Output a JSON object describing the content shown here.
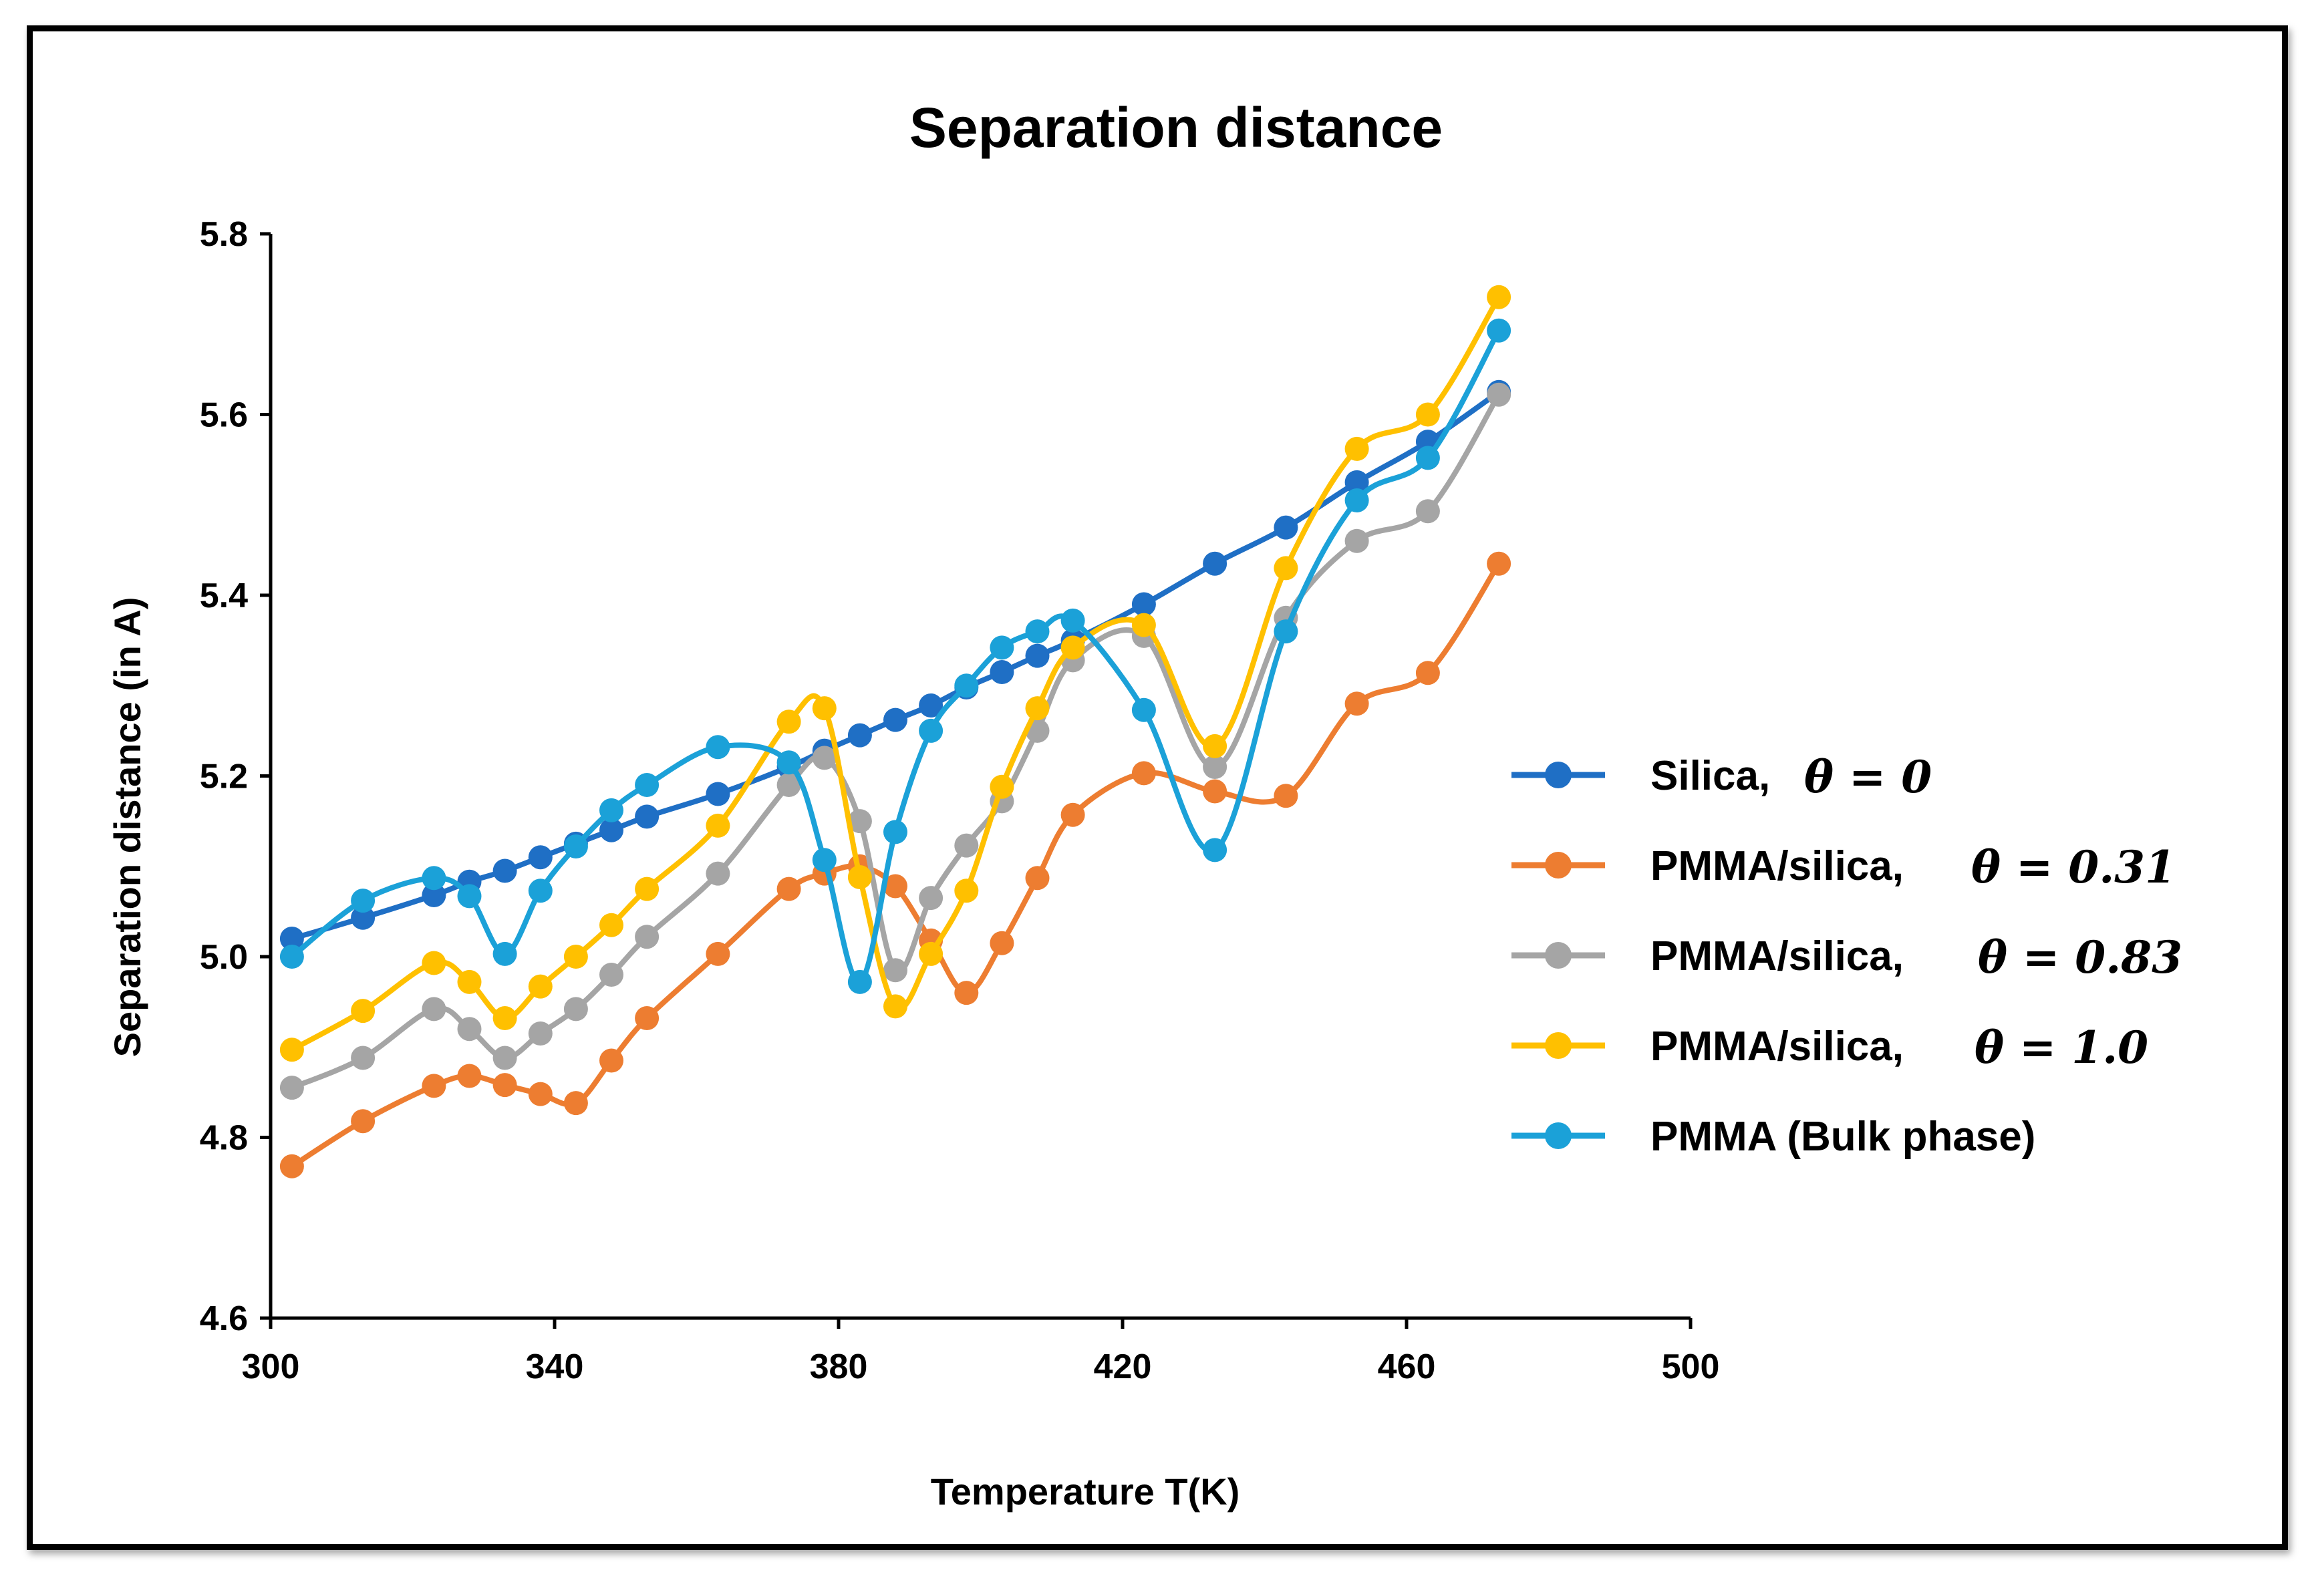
{
  "chart_data": {
    "type": "line",
    "title": "Separation distance",
    "xlabel": "Temperature T(K)",
    "ylabel": "Separation distance  (in A)",
    "xlim": [
      300,
      500
    ],
    "ylim": [
      4.6,
      5.8
    ],
    "xticks": [
      300,
      340,
      380,
      420,
      460,
      500
    ],
    "yticks": [
      4.6,
      4.8,
      5.0,
      5.2,
      5.4,
      5.6,
      5.8
    ],
    "xtick_labels": [
      "300",
      "340",
      "380",
      "420",
      "460",
      "500"
    ],
    "ytick_labels": [
      "4.6",
      "4.8",
      "5.0",
      "5.2",
      "5.4",
      "5.6",
      "5.8"
    ],
    "legend_position": "right",
    "series": [
      {
        "name": "Silica,",
        "math": "θ = 0",
        "color": "#1f6fc5",
        "x": [
          303,
          313,
          323,
          328,
          333,
          338,
          343,
          348,
          353,
          363,
          373,
          378,
          383,
          388,
          393,
          398,
          403,
          408,
          413,
          423,
          433,
          443,
          453,
          463,
          473
        ],
        "y": [
          5.02,
          5.043,
          5.068,
          5.083,
          5.095,
          5.11,
          5.125,
          5.14,
          5.155,
          5.18,
          5.21,
          5.228,
          5.245,
          5.262,
          5.278,
          5.298,
          5.315,
          5.333,
          5.35,
          5.39,
          5.435,
          5.475,
          5.525,
          5.57,
          5.625
        ]
      },
      {
        "name": "PMMA/silica,",
        "math": "θ = 0.31",
        "color": "#ed7d31",
        "x": [
          303,
          313,
          323,
          328,
          333,
          338,
          343,
          348,
          353,
          363,
          373,
          378,
          383,
          388,
          393,
          398,
          403,
          408,
          413,
          423,
          433,
          443,
          453,
          463,
          473
        ],
        "y": [
          4.768,
          4.818,
          4.857,
          4.868,
          4.858,
          4.848,
          4.838,
          4.885,
          4.932,
          5.003,
          5.075,
          5.092,
          5.1,
          5.078,
          5.018,
          4.96,
          5.015,
          5.087,
          5.157,
          5.203,
          5.183,
          5.178,
          5.28,
          5.314,
          5.435
        ]
      },
      {
        "name": "PMMA/silica,",
        "math": "θ = 0.83",
        "color": "#a5a5a5",
        "x": [
          303,
          313,
          323,
          328,
          333,
          338,
          343,
          348,
          353,
          363,
          373,
          378,
          383,
          388,
          393,
          398,
          403,
          408,
          413,
          423,
          433,
          443,
          453,
          463,
          473
        ],
        "y": [
          4.855,
          4.888,
          4.942,
          4.92,
          4.888,
          4.915,
          4.942,
          4.98,
          5.022,
          5.092,
          5.19,
          5.22,
          5.15,
          4.985,
          5.065,
          5.123,
          5.172,
          5.25,
          5.328,
          5.355,
          5.21,
          5.375,
          5.46,
          5.493,
          5.622
        ]
      },
      {
        "name": "PMMA/silica,",
        "math": "θ = 1.0",
        "color": "#ffc000",
        "x": [
          303,
          313,
          323,
          328,
          333,
          338,
          343,
          348,
          353,
          363,
          373,
          378,
          383,
          388,
          393,
          398,
          403,
          408,
          413,
          423,
          433,
          443,
          453,
          463,
          473
        ],
        "y": [
          4.897,
          4.94,
          4.993,
          4.972,
          4.932,
          4.967,
          5.0,
          5.035,
          5.075,
          5.145,
          5.26,
          5.275,
          5.088,
          4.945,
          5.003,
          5.073,
          5.188,
          5.275,
          5.342,
          5.367,
          5.233,
          5.43,
          5.562,
          5.6,
          5.73
        ]
      },
      {
        "name": "PMMA (Bulk phase)",
        "math": "",
        "color": "#1ba1d8",
        "x": [
          303,
          313,
          323,
          328,
          333,
          338,
          343,
          348,
          353,
          363,
          373,
          378,
          383,
          388,
          393,
          398,
          403,
          408,
          413,
          423,
          433,
          443,
          453,
          463,
          473
        ],
        "y": [
          5.0,
          5.062,
          5.087,
          5.067,
          5.003,
          5.073,
          5.122,
          5.162,
          5.19,
          5.232,
          5.215,
          5.107,
          4.972,
          5.138,
          5.25,
          5.3,
          5.342,
          5.36,
          5.372,
          5.273,
          5.118,
          5.36,
          5.505,
          5.552,
          5.693
        ]
      }
    ]
  }
}
